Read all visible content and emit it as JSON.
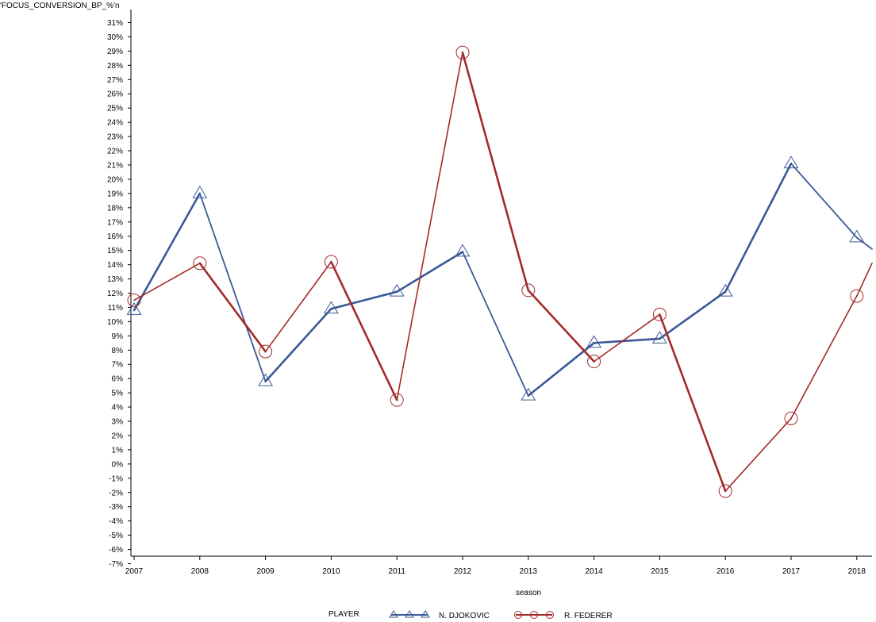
{
  "chart_data": {
    "type": "line",
    "ylabel": "'FOCUS_CONVERSION_BP_%'n",
    "xlabel": "season",
    "x": [
      2007,
      2008,
      2009,
      2010,
      2011,
      2012,
      2013,
      2014,
      2015,
      2016,
      2017,
      2018
    ],
    "ylim": [
      -7,
      31
    ],
    "yticks_unit": "%",
    "grid": false,
    "legend_title": "PLAYER",
    "legend_placement": "bottom",
    "series": [
      {
        "name": "N. DJOKOVIC",
        "color": "#3b5998",
        "marker": "triangle",
        "values": [
          10.8,
          19.0,
          5.8,
          10.9,
          12.1,
          14.9,
          4.8,
          8.5,
          8.8,
          12.1,
          21.1,
          15.9
        ]
      },
      {
        "name": "R. FEDERER",
        "color": "#a32a2a",
        "marker": "circle",
        "values": [
          11.5,
          14.1,
          7.9,
          14.2,
          4.5,
          28.9,
          12.2,
          7.2,
          10.5,
          -1.9,
          3.2,
          11.8
        ]
      }
    ],
    "partial_segments_to_edge": [
      {
        "series": "N. DJOKOVIC",
        "value_at_edge": 15.1
      },
      {
        "series": "R. FEDERER",
        "value_at_edge": 14.1
      }
    ]
  }
}
